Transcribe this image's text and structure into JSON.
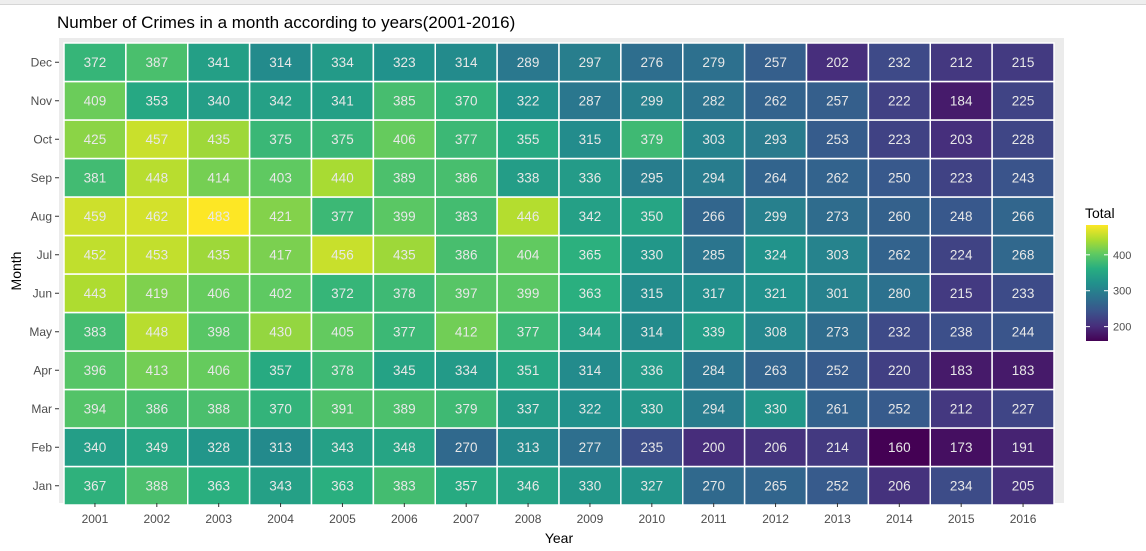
{
  "chart_data": {
    "type": "heatmap",
    "title": "Number of Crimes in a month according to years(2001-2016)",
    "xlabel": "Year",
    "ylabel": "Month",
    "x": [
      "2001",
      "2002",
      "2003",
      "2004",
      "2005",
      "2006",
      "2007",
      "2008",
      "2009",
      "2010",
      "2011",
      "2012",
      "2013",
      "2014",
      "2015",
      "2016"
    ],
    "y": [
      "Jan",
      "Feb",
      "Mar",
      "Apr",
      "May",
      "Jun",
      "Jul",
      "Aug",
      "Sep",
      "Oct",
      "Nov",
      "Dec"
    ],
    "values": [
      [
        367,
        388,
        363,
        343,
        363,
        383,
        357,
        346,
        330,
        327,
        270,
        265,
        252,
        206,
        234,
        205
      ],
      [
        340,
        349,
        328,
        313,
        343,
        348,
        270,
        313,
        277,
        235,
        200,
        206,
        214,
        160,
        173,
        191
      ],
      [
        394,
        386,
        388,
        370,
        391,
        389,
        379,
        337,
        322,
        330,
        294,
        330,
        261,
        252,
        212,
        227
      ],
      [
        396,
        413,
        406,
        357,
        378,
        345,
        334,
        351,
        314,
        336,
        284,
        263,
        252,
        220,
        183,
        183
      ],
      [
        383,
        448,
        398,
        430,
        405,
        377,
        412,
        377,
        344,
        314,
        339,
        308,
        273,
        232,
        238,
        244
      ],
      [
        443,
        419,
        406,
        402,
        372,
        378,
        397,
        399,
        363,
        315,
        317,
        321,
        301,
        280,
        215,
        233
      ],
      [
        452,
        453,
        435,
        417,
        456,
        435,
        386,
        404,
        365,
        330,
        285,
        324,
        303,
        262,
        224,
        268
      ],
      [
        459,
        462,
        483,
        421,
        377,
        399,
        383,
        446,
        342,
        350,
        266,
        299,
        273,
        260,
        248,
        266
      ],
      [
        381,
        448,
        414,
        403,
        440,
        389,
        386,
        338,
        336,
        295,
        294,
        264,
        262,
        250,
        223,
        243
      ],
      [
        425,
        457,
        435,
        375,
        375,
        406,
        377,
        355,
        315,
        379,
        303,
        293,
        253,
        223,
        203,
        228
      ],
      [
        409,
        353,
        340,
        342,
        341,
        385,
        370,
        322,
        287,
        299,
        282,
        262,
        257,
        222,
        184,
        225
      ],
      [
        372,
        387,
        341,
        314,
        334,
        323,
        314,
        289,
        297,
        276,
        279,
        257,
        202,
        232,
        212,
        215
      ]
    ],
    "legend": {
      "title": "Total",
      "ticks": [
        200,
        300,
        400
      ],
      "range": [
        160,
        483
      ],
      "colormap": "viridis",
      "placement": "right"
    },
    "grid": true,
    "colors": {
      "panel_background": "#ebebeb",
      "cell_border": "#ffffff",
      "label_text": "#e8e8e8"
    }
  }
}
